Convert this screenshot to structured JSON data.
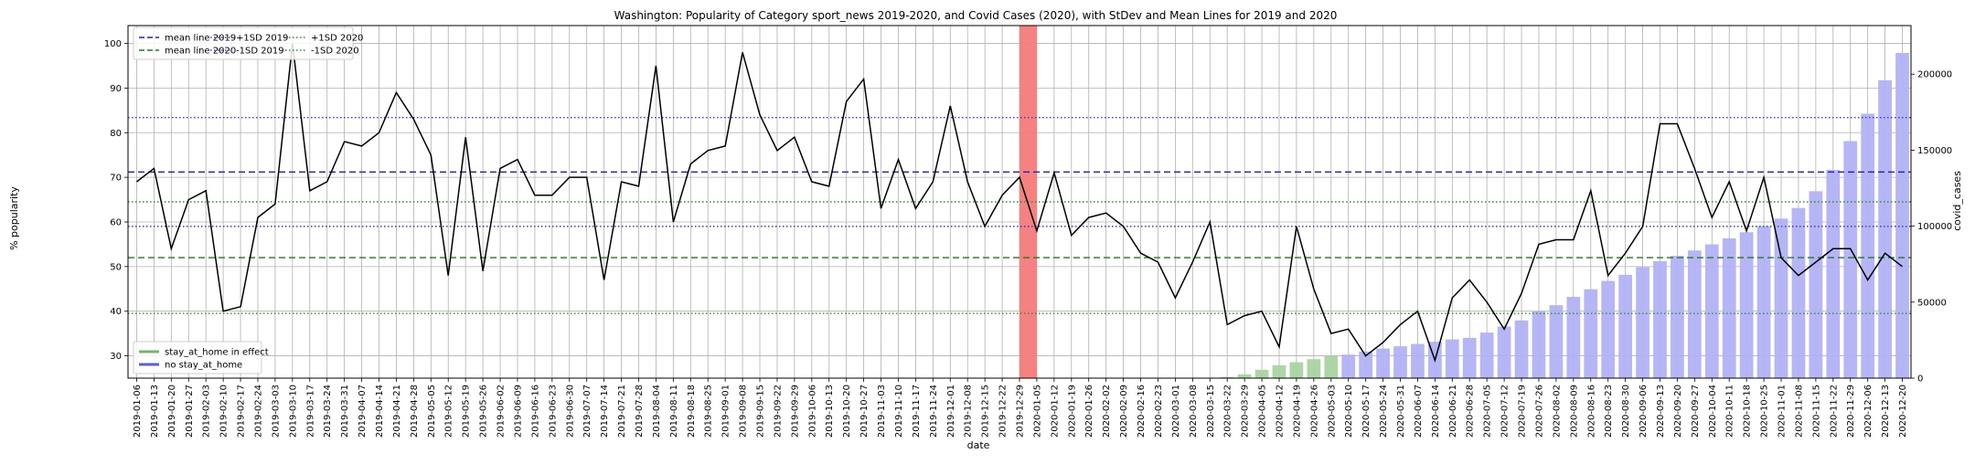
{
  "chart_data": {
    "type": "line",
    "title": "Washington: Popularity of Category sport_news 2019-2020, and Covid Cases (2020), with StDev and Mean Lines for 2019 and 2020",
    "xlabel": "date",
    "ylabel": "% popularity",
    "y2label": "covid_cases",
    "ylim": [
      25,
      104
    ],
    "y2lim": [
      0,
      232000
    ],
    "yticks": [
      30,
      40,
      50,
      60,
      70,
      80,
      90,
      100
    ],
    "y2ticks": [
      0,
      50000,
      100000,
      150000,
      200000
    ],
    "y2ticklabels": [
      "0",
      "50000",
      "100000",
      "150000",
      "200000"
    ],
    "grid": true,
    "dates": [
      "2019-01-06",
      "2019-01-13",
      "2019-01-20",
      "2019-01-27",
      "2019-02-03",
      "2019-02-10",
      "2019-02-17",
      "2019-02-24",
      "2019-03-03",
      "2019-03-10",
      "2019-03-17",
      "2019-03-24",
      "2019-03-31",
      "2019-04-07",
      "2019-04-14",
      "2019-04-21",
      "2019-04-28",
      "2019-05-05",
      "2019-05-12",
      "2019-05-19",
      "2019-05-26",
      "2019-06-02",
      "2019-06-09",
      "2019-06-16",
      "2019-06-23",
      "2019-06-30",
      "2019-07-07",
      "2019-07-14",
      "2019-07-21",
      "2019-07-28",
      "2019-08-04",
      "2019-08-11",
      "2019-08-18",
      "2019-08-25",
      "2019-09-01",
      "2019-09-08",
      "2019-09-15",
      "2019-09-22",
      "2019-09-29",
      "2019-10-06",
      "2019-10-13",
      "2019-10-20",
      "2019-10-27",
      "2019-11-03",
      "2019-11-10",
      "2019-11-17",
      "2019-11-24",
      "2019-12-01",
      "2019-12-08",
      "2019-12-15",
      "2019-12-22",
      "2019-12-29",
      "2020-01-05",
      "2020-01-12",
      "2020-01-19",
      "2020-01-26",
      "2020-02-02",
      "2020-02-09",
      "2020-02-16",
      "2020-02-23",
      "2020-03-01",
      "2020-03-08",
      "2020-03-15",
      "2020-03-22",
      "2020-03-29",
      "2020-04-05",
      "2020-04-12",
      "2020-04-19",
      "2020-04-26",
      "2020-05-03",
      "2020-05-10",
      "2020-05-17",
      "2020-05-24",
      "2020-05-31",
      "2020-06-07",
      "2020-06-14",
      "2020-06-21",
      "2020-06-28",
      "2020-07-05",
      "2020-07-12",
      "2020-07-19",
      "2020-07-26",
      "2020-08-02",
      "2020-08-09",
      "2020-08-16",
      "2020-08-23",
      "2020-08-30",
      "2020-09-06",
      "2020-09-13",
      "2020-09-20",
      "2020-09-27",
      "2020-10-04",
      "2020-10-11",
      "2020-10-18",
      "2020-10-25",
      "2020-11-01",
      "2020-11-08",
      "2020-11-15",
      "2020-11-22",
      "2020-11-29",
      "2020-12-06",
      "2020-12-13",
      "2020-12-20"
    ],
    "popularity": [
      69,
      72,
      54,
      65,
      67,
      40,
      41,
      61,
      64,
      100,
      67,
      69,
      78,
      77,
      80,
      89,
      83,
      75,
      48,
      79,
      49,
      72,
      74,
      66,
      66,
      70,
      70,
      47,
      69,
      68,
      95,
      60,
      73,
      76,
      77,
      98,
      84,
      76,
      79,
      69,
      68,
      87,
      92,
      63,
      74,
      63,
      69,
      86,
      69,
      59,
      66,
      70,
      58,
      71,
      57,
      61,
      62,
      59,
      53,
      51,
      43,
      51,
      60,
      37,
      39,
      40,
      32,
      59,
      45,
      35,
      36,
      30,
      33,
      37,
      40,
      29,
      43,
      47,
      42,
      36,
      44,
      55,
      56,
      56,
      67,
      48,
      53,
      59,
      82,
      82,
      72,
      61,
      69,
      58,
      70,
      52,
      48,
      51,
      54,
      54,
      47,
      53,
      50
    ],
    "covid_cases": [
      0,
      0,
      0,
      0,
      0,
      0,
      0,
      0,
      0,
      0,
      0,
      0,
      0,
      0,
      0,
      0,
      0,
      0,
      0,
      0,
      0,
      0,
      0,
      0,
      0,
      0,
      0,
      0,
      0,
      0,
      0,
      0,
      0,
      0,
      0,
      0,
      0,
      0,
      0,
      0,
      0,
      0,
      0,
      0,
      0,
      0,
      0,
      0,
      0,
      0,
      0,
      0,
      0,
      0,
      0,
      0,
      0,
      0,
      0,
      0,
      0,
      0,
      0,
      800,
      2500,
      5500,
      8500,
      10500,
      12500,
      14500,
      15500,
      17500,
      19500,
      21000,
      22500,
      24000,
      25500,
      26500,
      30000,
      34000,
      38000,
      44000,
      48000,
      53500,
      58500,
      64000,
      68000,
      73000,
      77000,
      80500,
      84000,
      88000,
      92000,
      96000,
      100000,
      105000,
      112000,
      123000,
      137000,
      156000,
      174000,
      196000,
      214000
    ],
    "stay_at_home_start": "2020-03-22",
    "stay_at_home_end": "2020-05-03",
    "highlight_date": "2020-01-05",
    "mean_2019": 71.2,
    "sd_plus_2019": 83.4,
    "sd_minus_2019": 59.0,
    "mean_2020": 52.0,
    "sd_plus_2020": 64.5,
    "sd_minus_2020": 39.5,
    "colors": {
      "popularity_line": "#000000",
      "mean_2019": "#1f1fbf",
      "mean_2020": "#1a7f1a",
      "sd_2019": "#3a3ad8",
      "sd_2020": "#2f8f2f",
      "stay_at_home_bar": "#a8d4a0",
      "no_stay_bar": "#b2b2f5",
      "highlight": "#f47a7a"
    },
    "legend_upper": [
      {
        "label": "mean line 2019",
        "color": "#1f1fbf",
        "style": "dashed"
      },
      {
        "label": "mean line 2020",
        "color": "#1a7f1a",
        "style": "dashed"
      },
      {
        "label": "+1SD 2019",
        "color": "#3a3ad8",
        "style": "dotted"
      },
      {
        "label": "-1SD 2019",
        "color": "#3a3ad8",
        "style": "dotted"
      },
      {
        "label": "+1SD 2020",
        "color": "#2f8f2f",
        "style": "dotted"
      },
      {
        "label": "-1SD 2020",
        "color": "#2f8f2f",
        "style": "dotted"
      }
    ],
    "legend_upper_placement": "top-left",
    "legend_lower": [
      {
        "label": "stay_at_home in effect",
        "color": "#6fb66f"
      },
      {
        "label": "no stay_at_home",
        "color": "#5a5ae6"
      }
    ],
    "legend_lower_placement": "bottom-left"
  }
}
